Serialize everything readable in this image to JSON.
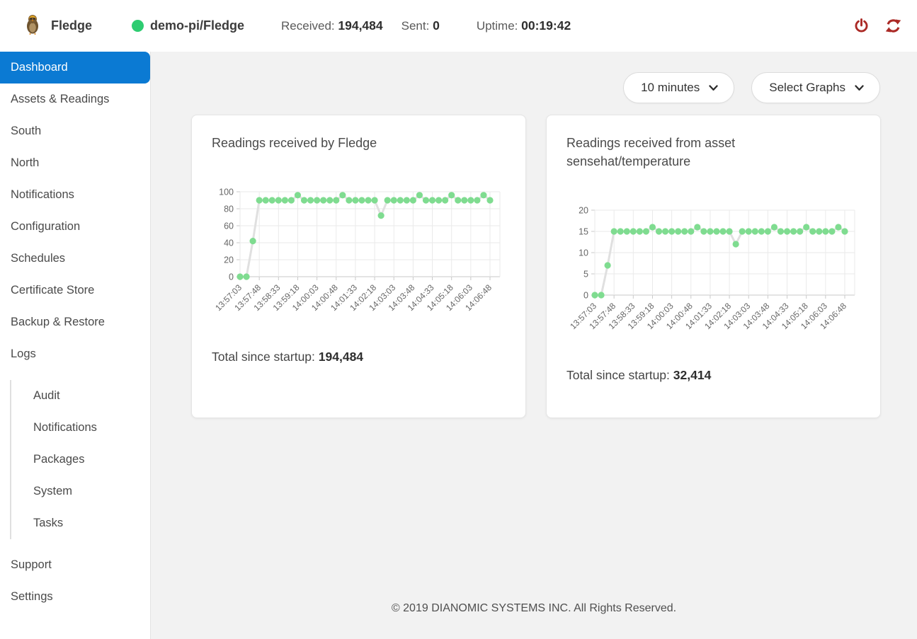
{
  "header": {
    "app_name": "Fledge",
    "instance": "demo-pi/Fledge",
    "received_label": "Received:",
    "received_value": "194,484",
    "sent_label": "Sent:",
    "sent_value": "0",
    "uptime_label": "Uptime:",
    "uptime_value": "00:19:42"
  },
  "sidebar": {
    "items": [
      "Dashboard",
      "Assets & Readings",
      "South",
      "North",
      "Notifications",
      "Configuration",
      "Schedules",
      "Certificate Store",
      "Backup & Restore",
      "Logs"
    ],
    "log_subitems": [
      "Audit",
      "Notifications",
      "Packages",
      "System",
      "Tasks"
    ],
    "bottom_items": [
      "Support",
      "Settings"
    ],
    "active_item": "Dashboard"
  },
  "toolbar": {
    "time_dropdown": "10 minutes",
    "graphs_dropdown": "Select Graphs"
  },
  "cards": [
    {
      "title": "Readings received by Fledge",
      "total_label": "Total since startup:",
      "total_value": "194,484"
    },
    {
      "title": "Readings received from asset sensehat/temperature",
      "total_label": "Total since startup:",
      "total_value": "32,414"
    }
  ],
  "chart_data": [
    {
      "type": "line",
      "title": "Readings received by Fledge",
      "x_labels": [
        "13:57:03",
        "13:57:48",
        "13:58:33",
        "13:59:18",
        "14:00:03",
        "14:00:48",
        "14:01:33",
        "14:02:18",
        "14:03:03",
        "14:03:48",
        "14:04:33",
        "14:05:18",
        "14:06:03",
        "14:06:48"
      ],
      "points_per_label": 3,
      "values": [
        0,
        0,
        42,
        90,
        90,
        90,
        90,
        90,
        90,
        96,
        90,
        90,
        90,
        90,
        90,
        90,
        96,
        90,
        90,
        90,
        90,
        90,
        72,
        90,
        90,
        90,
        90,
        90,
        96,
        90,
        90,
        90,
        90,
        96,
        90,
        90,
        90,
        90,
        96,
        90
      ],
      "ylim": [
        0,
        100
      ],
      "yticks": [
        0,
        20,
        40,
        60,
        80,
        100
      ],
      "grid": true,
      "legend": "none"
    },
    {
      "type": "line",
      "title": "Readings received from asset sensehat/temperature",
      "x_labels": [
        "13:57:03",
        "13:57:48",
        "13:58:33",
        "13:59:18",
        "14:00:03",
        "14:00:48",
        "14:01:33",
        "14:02:18",
        "14:03:03",
        "14:03:48",
        "14:04:33",
        "14:05:18",
        "14:06:03",
        "14:06:48"
      ],
      "points_per_label": 3,
      "values": [
        0,
        0,
        7,
        15,
        15,
        15,
        15,
        15,
        15,
        16,
        15,
        15,
        15,
        15,
        15,
        15,
        16,
        15,
        15,
        15,
        15,
        15,
        12,
        15,
        15,
        15,
        15,
        15,
        16,
        15,
        15,
        15,
        15,
        16,
        15,
        15,
        15,
        15,
        16,
        15
      ],
      "ylim": [
        0,
        20
      ],
      "yticks": [
        0,
        5,
        10,
        15,
        20
      ],
      "grid": true,
      "legend": "none"
    }
  ],
  "footer": {
    "copyright": "© 2019 DIANOMIC SYSTEMS INC. All Rights Reserved."
  },
  "colors": {
    "active_nav_blue": "#0b7ad3",
    "status_green": "#2ecc71",
    "icon_red": "#ab2a26",
    "chart_point_green": "#7fdc90",
    "chart_line_gray": "#e0e0e0",
    "main_background": "#f2f2f2"
  }
}
